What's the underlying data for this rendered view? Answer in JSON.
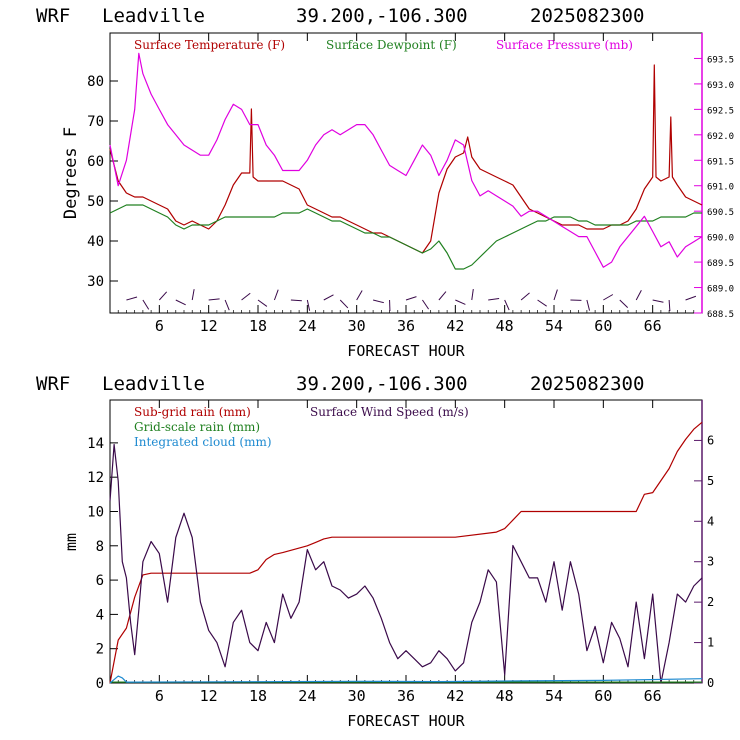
{
  "panels": [
    {
      "header": {
        "model": "WRF",
        "location": "Leadville",
        "coords": "39.200,-106.300",
        "init": "2025082300"
      },
      "xlabel": "FORECAST HOUR",
      "ylabel": "Degrees F",
      "legend": [
        "Surface Temperature (F)",
        "Surface Dewpoint (F)",
        "Surface Pressure (mb)"
      ]
    },
    {
      "header": {
        "model": "WRF",
        "location": "Leadville",
        "coords": "39.200,-106.300",
        "init": "2025082300"
      },
      "xlabel": "FORECAST HOUR",
      "ylabel": "mm",
      "legend": [
        "Sub-grid rain (mm)",
        "Surface Wind Speed (m/s)",
        "Grid-scale rain (mm)",
        "Integrated cloud (mm)"
      ]
    }
  ],
  "colors": {
    "temperature": "#b00000",
    "dewpoint": "#208020",
    "pressure": "#e000e0",
    "wind": "#3a0a4a",
    "subgrid": "#b00000",
    "gridscale": "#208020",
    "cloud": "#1e8ad0"
  },
  "chart_data": [
    {
      "type": "line",
      "xlim": [
        0,
        72
      ],
      "x_ticks": [
        "6",
        "12",
        "18",
        "24",
        "30",
        "36",
        "42",
        "48",
        "54",
        "60",
        "66"
      ],
      "ylim": [
        22,
        92
      ],
      "y_ticks": [
        "30",
        "40",
        "50",
        "60",
        "70",
        "80"
      ],
      "y2lim": [
        688.5,
        694
      ],
      "y2_ticks": [
        "688.5",
        "689.0",
        "689.5",
        "690.0",
        "690.5",
        "691.0",
        "691.5",
        "692.0",
        "692.5",
        "693.0",
        "693.5"
      ],
      "series": [
        {
          "name": "Surface Temperature (F)",
          "axis": "left",
          "x": [
            0,
            1,
            2,
            3,
            4,
            5,
            6,
            7,
            8,
            9,
            10,
            11,
            12,
            13,
            14,
            15,
            16,
            17,
            17.2,
            17.4,
            18,
            19,
            20,
            21,
            22,
            23,
            24,
            25,
            26,
            27,
            28,
            29,
            30,
            31,
            32,
            33,
            34,
            35,
            36,
            37,
            38,
            39,
            40,
            41,
            42,
            43,
            43.5,
            44,
            45,
            46,
            47,
            48,
            49,
            50,
            51,
            52,
            53,
            54,
            55,
            56,
            57,
            58,
            59,
            60,
            61,
            62,
            63,
            64,
            65,
            66,
            66.2,
            66.4,
            67,
            68,
            68.2,
            68.4,
            69,
            70,
            71,
            72
          ],
          "values": [
            63,
            55,
            52,
            51,
            51,
            50,
            49,
            48,
            45,
            44,
            45,
            44,
            43,
            45,
            49,
            54,
            57,
            57,
            73,
            56,
            55,
            55,
            55,
            55,
            54,
            53,
            49,
            48,
            47,
            46,
            46,
            45,
            44,
            43,
            42,
            42,
            41,
            40,
            39,
            38,
            37,
            40,
            52,
            58,
            61,
            62,
            66,
            61,
            58,
            57,
            56,
            55,
            54,
            51,
            48,
            47,
            46,
            45,
            44,
            44,
            44,
            43,
            43,
            43,
            44,
            44,
            45,
            48,
            53,
            56,
            84,
            56,
            55,
            56,
            71,
            56,
            54,
            51,
            50,
            49
          ]
        },
        {
          "name": "Surface Dewpoint (F)",
          "axis": "left",
          "x": [
            0,
            1,
            2,
            3,
            4,
            5,
            6,
            7,
            8,
            9,
            10,
            11,
            12,
            13,
            14,
            15,
            16,
            17,
            18,
            19,
            20,
            21,
            22,
            23,
            24,
            25,
            26,
            27,
            28,
            29,
            30,
            31,
            32,
            33,
            34,
            35,
            36,
            37,
            38,
            39,
            40,
            41,
            42,
            43,
            44,
            45,
            46,
            47,
            48,
            49,
            50,
            51,
            52,
            53,
            54,
            55,
            56,
            57,
            58,
            59,
            60,
            61,
            62,
            63,
            64,
            65,
            66,
            67,
            68,
            69,
            70,
            71,
            72
          ],
          "values": [
            47,
            48,
            49,
            49,
            49,
            48,
            47,
            46,
            44,
            43,
            44,
            44,
            44,
            45,
            46,
            46,
            46,
            46,
            46,
            46,
            46,
            47,
            47,
            47,
            48,
            47,
            46,
            45,
            45,
            44,
            43,
            42,
            42,
            41,
            41,
            40,
            39,
            38,
            37,
            38,
            40,
            37,
            33,
            33,
            34,
            36,
            38,
            40,
            41,
            42,
            43,
            44,
            45,
            45,
            46,
            46,
            46,
            45,
            45,
            44,
            44,
            44,
            44,
            44,
            45,
            45,
            45,
            46,
            46,
            46,
            46,
            47,
            47
          ]
        },
        {
          "name": "Surface Pressure (mb)",
          "axis": "right",
          "x": [
            0,
            1,
            2,
            3,
            3.5,
            4,
            5,
            6,
            7,
            8,
            9,
            10,
            11,
            12,
            13,
            14,
            15,
            16,
            17,
            18,
            19,
            20,
            21,
            22,
            23,
            24,
            25,
            26,
            27,
            28,
            29,
            30,
            31,
            32,
            33,
            34,
            35,
            36,
            37,
            38,
            39,
            40,
            41,
            42,
            43,
            44,
            45,
            46,
            47,
            48,
            49,
            50,
            51,
            52,
            53,
            54,
            55,
            56,
            57,
            58,
            59,
            60,
            61,
            62,
            63,
            64,
            65,
            66,
            67,
            68,
            69,
            70,
            71,
            72
          ],
          "values": [
            691.8,
            691.0,
            691.5,
            692.5,
            693.6,
            693.2,
            692.8,
            692.5,
            692.2,
            692.0,
            691.8,
            691.7,
            691.6,
            691.6,
            691.9,
            692.3,
            692.6,
            692.5,
            692.2,
            692.2,
            691.8,
            691.6,
            691.3,
            691.3,
            691.3,
            691.5,
            691.8,
            692.0,
            692.1,
            692.0,
            692.1,
            692.2,
            692.2,
            692.0,
            691.7,
            691.4,
            691.3,
            691.2,
            691.5,
            691.8,
            691.6,
            691.2,
            691.5,
            691.9,
            691.8,
            691.1,
            690.8,
            690.9,
            690.8,
            690.7,
            690.6,
            690.4,
            690.5,
            690.5,
            690.4,
            690.3,
            690.2,
            690.1,
            690.0,
            690.0,
            689.7,
            689.4,
            689.5,
            689.8,
            690.0,
            690.2,
            690.4,
            690.1,
            689.8,
            689.9,
            689.6,
            689.8,
            689.9,
            690.0
          ]
        }
      ]
    },
    {
      "type": "line",
      "xlim": [
        0,
        72
      ],
      "x_ticks": [
        "6",
        "12",
        "18",
        "24",
        "30",
        "36",
        "42",
        "48",
        "54",
        "60",
        "66"
      ],
      "ylim": [
        0,
        16.5
      ],
      "y_ticks": [
        "0",
        "2",
        "4",
        "6",
        "8",
        "10",
        "12",
        "14"
      ],
      "y2lim": [
        0,
        7
      ],
      "y2_ticks": [
        "0",
        "1",
        "2",
        "3",
        "4",
        "5",
        "6"
      ],
      "series": [
        {
          "name": "Sub-grid rain (mm)",
          "axis": "left",
          "x": [
            0,
            1,
            2,
            3,
            4,
            5,
            6,
            12,
            17,
            18,
            19,
            20,
            21,
            24,
            25,
            26,
            27,
            36,
            42,
            47,
            48,
            49,
            50,
            60,
            64,
            65,
            66,
            67,
            68,
            69,
            70,
            71,
            72
          ],
          "values": [
            0,
            2.5,
            3.2,
            5.0,
            6.3,
            6.4,
            6.4,
            6.4,
            6.4,
            6.6,
            7.2,
            7.5,
            7.6,
            8.0,
            8.2,
            8.4,
            8.5,
            8.5,
            8.5,
            8.8,
            9.0,
            9.5,
            10.0,
            10.0,
            10.0,
            11.0,
            11.1,
            11.8,
            12.5,
            13.5,
            14.2,
            14.8,
            15.2
          ]
        },
        {
          "name": "Surface Wind Speed (m/s)",
          "axis": "right",
          "x": [
            0,
            0.5,
            1,
            1.5,
            2,
            2.5,
            3,
            3.5,
            4,
            5,
            6,
            7,
            8,
            9,
            10,
            11,
            12,
            13,
            14,
            15,
            16,
            17,
            18,
            19,
            20,
            21,
            22,
            23,
            24,
            25,
            26,
            27,
            28,
            29,
            30,
            31,
            32,
            33,
            34,
            35,
            36,
            37,
            38,
            39,
            40,
            41,
            42,
            43,
            44,
            45,
            46,
            47,
            48,
            49,
            50,
            51,
            52,
            53,
            54,
            55,
            56,
            57,
            58,
            59,
            60,
            61,
            62,
            63,
            64,
            65,
            66,
            67,
            68,
            69,
            70,
            71,
            72
          ],
          "values": [
            4.5,
            5.9,
            5.0,
            3.0,
            2.6,
            1.5,
            0.7,
            1.8,
            3.0,
            3.5,
            3.2,
            2.0,
            3.6,
            4.2,
            3.6,
            2.0,
            1.3,
            1.0,
            0.4,
            1.5,
            1.8,
            1.0,
            0.8,
            1.5,
            1.0,
            2.2,
            1.6,
            2.0,
            3.3,
            2.8,
            3.0,
            2.4,
            2.3,
            2.1,
            2.2,
            2.4,
            2.1,
            1.6,
            1.0,
            0.6,
            0.8,
            0.6,
            0.4,
            0.5,
            0.8,
            0.6,
            0.3,
            0.5,
            1.5,
            2.0,
            2.8,
            2.5,
            0.2,
            3.4,
            3.0,
            2.6,
            2.6,
            2.0,
            3.0,
            1.8,
            3.0,
            2.2,
            0.8,
            1.4,
            0.5,
            1.5,
            1.1,
            0.4,
            2.0,
            0.6,
            2.2,
            0.0,
            1.0,
            2.2,
            2.0,
            2.4,
            2.6
          ]
        },
        {
          "name": "Grid-scale rain (mm)",
          "axis": "left",
          "x": [
            0,
            72
          ],
          "values": [
            0.05,
            0.05
          ]
        },
        {
          "name": "Integrated cloud (mm)",
          "axis": "left",
          "x": [
            0,
            0.5,
            1,
            1.5,
            2,
            3,
            30,
            40,
            50,
            60,
            72
          ],
          "values": [
            0,
            0.2,
            0.4,
            0.3,
            0.05,
            0.05,
            0.1,
            0.08,
            0.12,
            0.15,
            0.25
          ]
        }
      ]
    }
  ]
}
